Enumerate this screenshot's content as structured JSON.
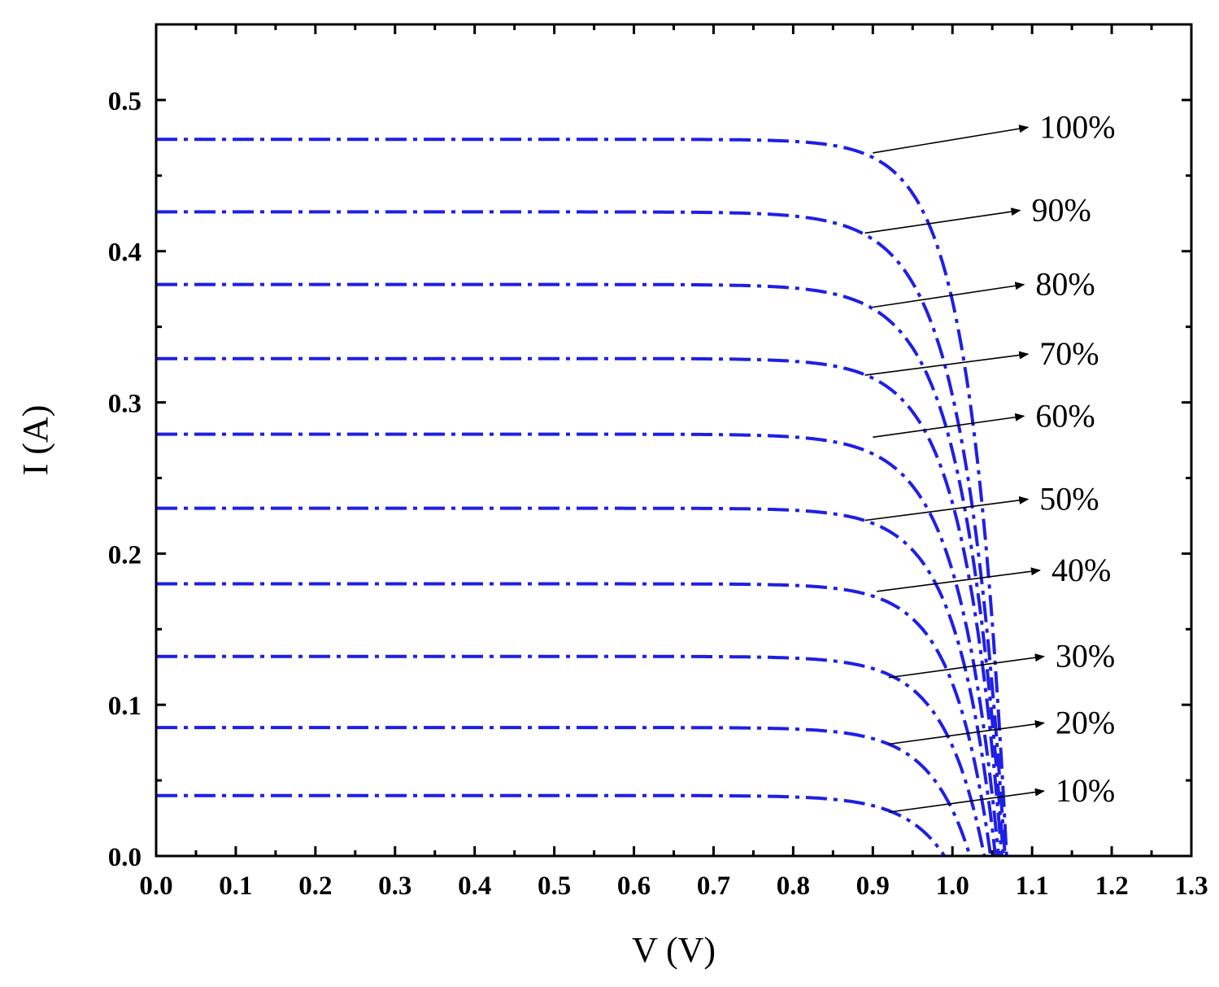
{
  "chart_data": {
    "type": "line",
    "title": "",
    "xlabel": "V (V)",
    "ylabel": "I (A)",
    "xlim": [
      0,
      1.3
    ],
    "ylim": [
      0,
      0.55
    ],
    "x_ticks": [
      "0.0",
      "0.1",
      "0.2",
      "0.3",
      "0.4",
      "0.5",
      "0.6",
      "0.7",
      "0.8",
      "0.9",
      "1.0",
      "1.1",
      "1.2",
      "1.3"
    ],
    "y_ticks": [
      "0.0",
      "0.1",
      "0.2",
      "0.3",
      "0.4",
      "0.5"
    ],
    "grid": false,
    "line_color": "#1f1fe6",
    "line_style": "dash-dot",
    "series": [
      {
        "name": "100%",
        "isc": 0.474,
        "voc": 1.068,
        "knee_voltage": 0.9,
        "knee_current": 0.462
      },
      {
        "name": "90%",
        "isc": 0.426,
        "voc": 1.066,
        "knee_voltage": 0.89,
        "knee_current": 0.411
      },
      {
        "name": "80%",
        "isc": 0.378,
        "voc": 1.064,
        "knee_voltage": 0.9,
        "knee_current": 0.362
      },
      {
        "name": "70%",
        "isc": 0.329,
        "voc": 1.062,
        "knee_voltage": 0.9,
        "knee_current": 0.316
      },
      {
        "name": "60%",
        "isc": 0.279,
        "voc": 1.058,
        "knee_voltage": 0.9,
        "knee_current": 0.266
      },
      {
        "name": "50%",
        "isc": 0.23,
        "voc": 1.054,
        "knee_voltage": 0.9,
        "knee_current": 0.22
      },
      {
        "name": "40%",
        "isc": 0.18,
        "voc": 1.048,
        "knee_voltage": 0.91,
        "knee_current": 0.17
      },
      {
        "name": "30%",
        "isc": 0.132,
        "voc": 1.04,
        "knee_voltage": 0.92,
        "knee_current": 0.12
      },
      {
        "name": "20%",
        "isc": 0.085,
        "voc": 1.022,
        "knee_voltage": 0.92,
        "knee_current": 0.074
      },
      {
        "name": "10%",
        "isc": 0.04,
        "voc": 0.99,
        "knee_voltage": 0.92,
        "knee_current": 0.03
      }
    ],
    "annotations": [
      {
        "text": "100%",
        "from": [
          0.9,
          0.465
        ],
        "to": [
          1.095,
          0.482
        ]
      },
      {
        "text": "90%",
        "from": [
          0.89,
          0.412
        ],
        "to": [
          1.085,
          0.427
        ]
      },
      {
        "text": "80%",
        "from": [
          0.9,
          0.363
        ],
        "to": [
          1.09,
          0.378
        ]
      },
      {
        "text": "70%",
        "from": [
          0.89,
          0.318
        ],
        "to": [
          1.095,
          0.332
        ]
      },
      {
        "text": "60%",
        "from": [
          0.9,
          0.277
        ],
        "to": [
          1.09,
          0.291
        ]
      },
      {
        "text": "50%",
        "from": [
          0.89,
          0.222
        ],
        "to": [
          1.095,
          0.236
        ]
      },
      {
        "text": "40%",
        "from": [
          0.905,
          0.175
        ],
        "to": [
          1.11,
          0.189
        ]
      },
      {
        "text": "30%",
        "from": [
          0.92,
          0.118
        ],
        "to": [
          1.115,
          0.132
        ]
      },
      {
        "text": "20%",
        "from": [
          0.92,
          0.074
        ],
        "to": [
          1.115,
          0.088
        ]
      },
      {
        "text": "10%",
        "from": [
          0.92,
          0.029
        ],
        "to": [
          1.115,
          0.043
        ]
      }
    ]
  }
}
